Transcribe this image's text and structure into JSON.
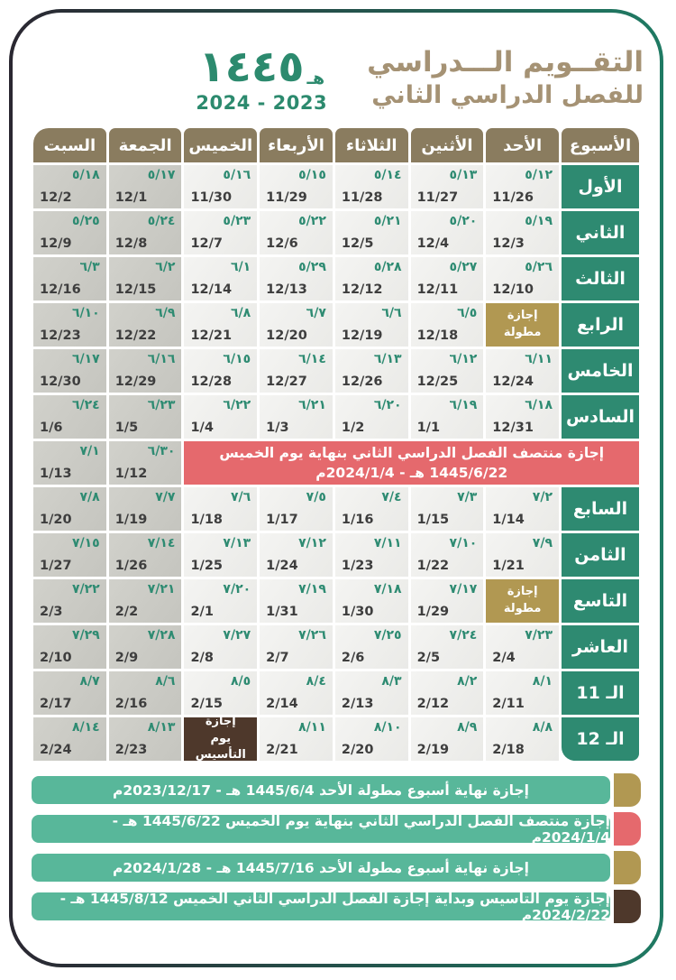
{
  "colors": {
    "teal_dark": "#2e8a71",
    "teal_light": "#58b79a",
    "tan_header": "#8a7c5f",
    "tan_title": "#a59274",
    "gold_holiday": "#b19852",
    "red_break": "#e5696d",
    "brown_founding": "#4e382b",
    "hijri_green": "#2e8b72",
    "border_gradient_left": "#2a2731",
    "border_gradient_right": "#1f7a63"
  },
  "header": {
    "title_line1": "التقــويم الـــدراسي",
    "title_line2": "للفصل الدراسي الثاني",
    "year_hijri": "١٤٤٥",
    "hijri_suffix": "هـ",
    "year_gregorian": "2024 - 2023"
  },
  "table": {
    "day_headers": [
      "الأسبوع",
      "الأحد",
      "الأثنين",
      "الثلاثاء",
      "الأربعاء",
      "الخميس",
      "الجمعة",
      "السبت"
    ],
    "rows": [
      {
        "type": "week",
        "label": "الأول",
        "days": [
          {
            "h": "٥/١٢",
            "g": "11/26"
          },
          {
            "h": "٥/١٣",
            "g": "11/27"
          },
          {
            "h": "٥/١٤",
            "g": "11/28"
          },
          {
            "h": "٥/١٥",
            "g": "11/29"
          },
          {
            "h": "٥/١٦",
            "g": "11/30"
          },
          {
            "h": "٥/١٧",
            "g": "12/1"
          },
          {
            "h": "٥/١٨",
            "g": "12/2"
          }
        ]
      },
      {
        "type": "week",
        "label": "الثاني",
        "days": [
          {
            "h": "٥/١٩",
            "g": "12/3"
          },
          {
            "h": "٥/٢٠",
            "g": "12/4"
          },
          {
            "h": "٥/٢١",
            "g": "12/5"
          },
          {
            "h": "٥/٢٢",
            "g": "12/6"
          },
          {
            "h": "٥/٢٣",
            "g": "12/7"
          },
          {
            "h": "٥/٢٤",
            "g": "12/8"
          },
          {
            "h": "٥/٢٥",
            "g": "12/9"
          }
        ]
      },
      {
        "type": "week",
        "label": "الثالث",
        "days": [
          {
            "h": "٥/٢٦",
            "g": "12/10"
          },
          {
            "h": "٥/٢٧",
            "g": "12/11"
          },
          {
            "h": "٥/٢٨",
            "g": "12/12"
          },
          {
            "h": "٥/٢٩",
            "g": "12/13"
          },
          {
            "h": "٦/١",
            "g": "12/14"
          },
          {
            "h": "٦/٢",
            "g": "12/15"
          },
          {
            "h": "٦/٣",
            "g": "12/16"
          }
        ]
      },
      {
        "type": "week",
        "label": "الرابع",
        "days": [
          {
            "special": true,
            "variant": "gold",
            "line1": "إجازة",
            "line2": "مطولة"
          },
          {
            "h": "٦/٥",
            "g": "12/18"
          },
          {
            "h": "٦/٦",
            "g": "12/19"
          },
          {
            "h": "٦/٧",
            "g": "12/20"
          },
          {
            "h": "٦/٨",
            "g": "12/21"
          },
          {
            "h": "٦/٩",
            "g": "12/22"
          },
          {
            "h": "٦/١٠",
            "g": "12/23"
          }
        ]
      },
      {
        "type": "week",
        "label": "الخامس",
        "days": [
          {
            "h": "٦/١١",
            "g": "12/24"
          },
          {
            "h": "٦/١٢",
            "g": "12/25"
          },
          {
            "h": "٦/١٣",
            "g": "12/26"
          },
          {
            "h": "٦/١٤",
            "g": "12/27"
          },
          {
            "h": "٦/١٥",
            "g": "12/28"
          },
          {
            "h": "٦/١٦",
            "g": "12/29"
          },
          {
            "h": "٦/١٧",
            "g": "12/30"
          }
        ]
      },
      {
        "type": "week",
        "label": "السادس",
        "days": [
          {
            "h": "٦/١٨",
            "g": "12/31"
          },
          {
            "h": "٦/١٩",
            "g": "1/1"
          },
          {
            "h": "٦/٢٠",
            "g": "1/2"
          },
          {
            "h": "٦/٢١",
            "g": "1/3"
          },
          {
            "h": "٦/٢٢",
            "g": "1/4"
          },
          {
            "h": "٦/٢٣",
            "g": "1/5"
          },
          {
            "h": "٦/٢٤",
            "g": "1/6"
          }
        ]
      },
      {
        "type": "banner",
        "line1": "إجازة منتصف الفصل الدراسي الثاني بنهاية يوم الخميس",
        "line2": "1445/6/22 هـ - 2024/1/4م",
        "friday": {
          "h": "٦/٣٠",
          "g": "1/12"
        },
        "saturday": {
          "h": "٧/١",
          "g": "1/13"
        }
      },
      {
        "type": "week",
        "label": "السابع",
        "days": [
          {
            "h": "٧/٢",
            "g": "1/14"
          },
          {
            "h": "٧/٣",
            "g": "1/15"
          },
          {
            "h": "٧/٤",
            "g": "1/16"
          },
          {
            "h": "٧/٥",
            "g": "1/17"
          },
          {
            "h": "٧/٦",
            "g": "1/18"
          },
          {
            "h": "٧/٧",
            "g": "1/19"
          },
          {
            "h": "٧/٨",
            "g": "1/20"
          }
        ]
      },
      {
        "type": "week",
        "label": "الثامن",
        "days": [
          {
            "h": "٧/٩",
            "g": "1/21"
          },
          {
            "h": "٧/١٠",
            "g": "1/22"
          },
          {
            "h": "٧/١١",
            "g": "1/23"
          },
          {
            "h": "٧/١٢",
            "g": "1/24"
          },
          {
            "h": "٧/١٣",
            "g": "1/25"
          },
          {
            "h": "٧/١٤",
            "g": "1/26"
          },
          {
            "h": "٧/١٥",
            "g": "1/27"
          }
        ]
      },
      {
        "type": "week",
        "label": "التاسع",
        "days": [
          {
            "special": true,
            "variant": "gold",
            "line1": "إجازة",
            "line2": "مطولة"
          },
          {
            "h": "٧/١٧",
            "g": "1/29"
          },
          {
            "h": "٧/١٨",
            "g": "1/30"
          },
          {
            "h": "٧/١٩",
            "g": "1/31"
          },
          {
            "h": "٧/٢٠",
            "g": "2/1"
          },
          {
            "h": "٧/٢١",
            "g": "2/2"
          },
          {
            "h": "٧/٢٢",
            "g": "2/3"
          }
        ]
      },
      {
        "type": "week",
        "label": "العاشر",
        "days": [
          {
            "h": "٧/٢٣",
            "g": "2/4"
          },
          {
            "h": "٧/٢٤",
            "g": "2/5"
          },
          {
            "h": "٧/٢٥",
            "g": "2/6"
          },
          {
            "h": "٧/٢٦",
            "g": "2/7"
          },
          {
            "h": "٧/٢٧",
            "g": "2/8"
          },
          {
            "h": "٧/٢٨",
            "g": "2/9"
          },
          {
            "h": "٧/٢٩",
            "g": "2/10"
          }
        ]
      },
      {
        "type": "week",
        "label": "الـ 11",
        "days": [
          {
            "h": "٨/١",
            "g": "2/11"
          },
          {
            "h": "٨/٢",
            "g": "2/12"
          },
          {
            "h": "٨/٣",
            "g": "2/13"
          },
          {
            "h": "٨/٤",
            "g": "2/14"
          },
          {
            "h": "٨/٥",
            "g": "2/15"
          },
          {
            "h": "٨/٦",
            "g": "2/16"
          },
          {
            "h": "٨/٧",
            "g": "2/17"
          }
        ]
      },
      {
        "type": "week",
        "label": "الـ 12",
        "days": [
          {
            "h": "٨/٨",
            "g": "2/18"
          },
          {
            "h": "٨/٩",
            "g": "2/19"
          },
          {
            "h": "٨/١٠",
            "g": "2/20"
          },
          {
            "h": "٨/١١",
            "g": "2/21"
          },
          {
            "special": true,
            "variant": "brown",
            "line1": "إجازة",
            "line2": "يوم التأسيس"
          },
          {
            "h": "٨/١٣",
            "g": "2/23"
          },
          {
            "h": "٨/١٤",
            "g": "2/24"
          }
        ]
      }
    ]
  },
  "legend": [
    {
      "tab": "gold",
      "text": "إجازة نهاية أسبوع مطولة الأحد 1445/6/4 هـ - 2023/12/17م"
    },
    {
      "tab": "red",
      "text": "إجازة منتصف الفصل الدراسي الثاني بنهاية يوم الخميس 1445/6/22 هـ - 2024/1/4م"
    },
    {
      "tab": "gold",
      "text": "إجازة نهاية أسبوع مطولة الأحد 1445/7/16 هـ - 2024/1/28م"
    },
    {
      "tab": "brown",
      "text": "إجازة يوم التأسيس وبداية إجازة الفصل الدراسي الثاني الخميس 1445/8/12 هـ - 2024/2/22م"
    }
  ]
}
